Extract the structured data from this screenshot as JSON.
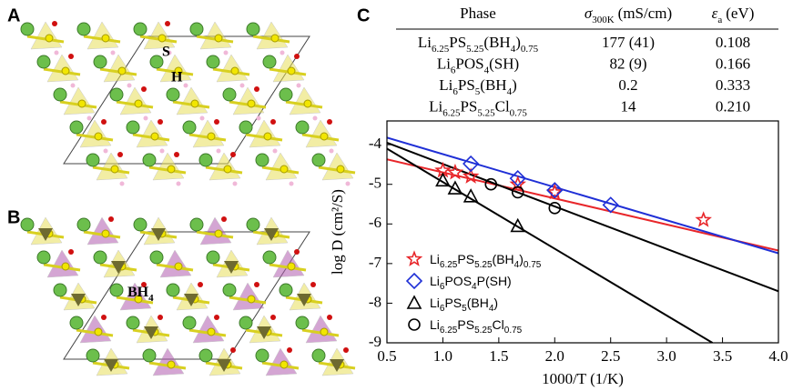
{
  "panels": {
    "a": {
      "label": "A",
      "atoms": [
        "S",
        "H"
      ]
    },
    "b": {
      "label": "B",
      "group": "BH4"
    },
    "c": {
      "label": "C"
    }
  },
  "table": {
    "header": {
      "phase": "Phase",
      "sigma": "σ",
      "sigma_sub": "300K",
      "sigma_unit": "(mS/cm)",
      "eps": "ε",
      "eps_sub": "a",
      "eps_unit": "(eV)"
    },
    "rows": [
      [
        "Li6.25PS5.25(BH4)0.75",
        "177 (41)",
        "0.108"
      ],
      [
        "Li6POS4(SH)",
        "82 (9)",
        "0.166"
      ],
      [
        "Li6PS5(BH4)",
        "0.2",
        "0.333"
      ],
      [
        "Li6.25PS5.25Cl0.75",
        "14",
        "0.210"
      ]
    ]
  },
  "chart_data": {
    "type": "scatter",
    "xlabel": "1000/T (1/K)",
    "ylabel": "log D (cm²/S)",
    "xlim": [
      0.5,
      4.0
    ],
    "ylim": [
      -9,
      -3.4
    ],
    "xticks": [
      0.5,
      {
        "value": 1,
        "label": "1.0"
      },
      1.5,
      {
        "value": 2,
        "label": "2.0"
      },
      2.5,
      {
        "value": 3,
        "label": "3.0"
      },
      3.5,
      {
        "value": 4,
        "label": "4.0"
      }
    ],
    "yticks": [
      -4,
      -5,
      -6,
      -7,
      -8,
      -9
    ],
    "legend": "lower left",
    "series": [
      {
        "name": "Li6.25PS5.25(BH4)0.75",
        "color": "#e8262a",
        "marker": "star",
        "x": [
          1.0,
          1.11,
          1.25,
          1.67,
          2.0,
          3.33
        ],
        "values": [
          -4.65,
          -4.7,
          -4.8,
          -5.0,
          -5.2,
          -5.9
        ],
        "fit": {
          "x": [
            0.5,
            4.0
          ],
          "y": [
            -4.37,
            -6.67
          ]
        }
      },
      {
        "name": "Li6POS4P(SH)",
        "color": "#1f2fd6",
        "marker": "diamond",
        "x": [
          1.25,
          1.67,
          2.0,
          2.5
        ],
        "values": [
          -4.48,
          -4.85,
          -5.15,
          -5.52
        ],
        "fit": {
          "x": [
            0.5,
            4.0
          ],
          "y": [
            -3.82,
            -6.74
          ]
        }
      },
      {
        "name": "Li6PS5(BH4)",
        "color": "#000000",
        "marker": "triangle",
        "x": [
          1.0,
          1.11,
          1.25,
          1.67
        ],
        "values": [
          -4.9,
          -5.1,
          -5.3,
          -6.05
        ],
        "fit": {
          "x": [
            0.5,
            4.0
          ],
          "y": [
            -3.95,
            -7.7
          ]
        }
      },
      {
        "name": "Li6.25PS5.25Cl0.75",
        "color": "#000000",
        "marker": "circle",
        "x": [
          1.43,
          1.67,
          2.0
        ],
        "values": [
          -5.0,
          -5.2,
          -5.6
        ],
        "fit": {
          "x": [
            0.5,
            3.41
          ],
          "y": [
            -4.1,
            -9
          ]
        }
      }
    ]
  }
}
